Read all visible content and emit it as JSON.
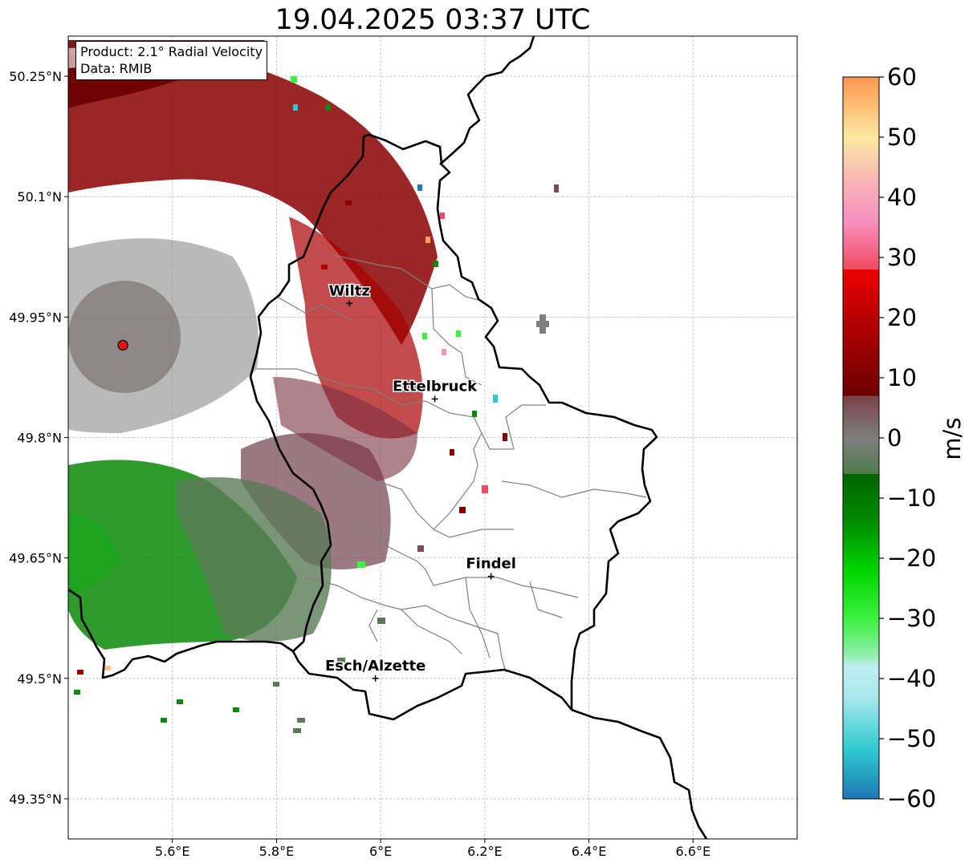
{
  "title": "19.04.2025 03:37 UTC",
  "info": {
    "product": "Product: 2.1° Radial Velocity",
    "source": "Data: RMIB"
  },
  "map": {
    "lon_range": [
      5.4,
      6.8
    ],
    "lat_range": [
      49.3,
      50.3
    ],
    "x_ticks": [
      {
        "value": 5.6,
        "label": "5.6°E"
      },
      {
        "value": 5.8,
        "label": "5.8°E"
      },
      {
        "value": 6.0,
        "label": "6°E"
      },
      {
        "value": 6.2,
        "label": "6.2°E"
      },
      {
        "value": 6.4,
        "label": "6.4°E"
      },
      {
        "value": 6.6,
        "label": "6.6°E"
      }
    ],
    "y_ticks": [
      {
        "value": 49.35,
        "label": "49.35°N"
      },
      {
        "value": 49.5,
        "label": "49.5°N"
      },
      {
        "value": 49.65,
        "label": "49.65°N"
      },
      {
        "value": 49.8,
        "label": "49.8°N"
      },
      {
        "value": 49.95,
        "label": "49.95°N"
      },
      {
        "value": 50.1,
        "label": "50.1°N"
      },
      {
        "value": 50.25,
        "label": "50.25°N"
      }
    ],
    "grid": true,
    "radar_site": {
      "lon": 5.505,
      "lat": 49.915,
      "color": "#ee1111"
    },
    "cities": [
      {
        "name": "Wiltz",
        "lon": 5.94,
        "lat": 49.967
      },
      {
        "name": "Ettelbruck",
        "lon": 6.104,
        "lat": 49.848
      },
      {
        "name": "Findel",
        "lon": 6.212,
        "lat": 49.627
      },
      {
        "name": "Esch/Alzette",
        "lon": 5.99,
        "lat": 49.5
      }
    ]
  },
  "colorbar": {
    "label": "m/s",
    "min": -60,
    "max": 60,
    "ticks": [
      {
        "value": 60,
        "label": "60"
      },
      {
        "value": 50,
        "label": "50"
      },
      {
        "value": 40,
        "label": "40"
      },
      {
        "value": 30,
        "label": "30"
      },
      {
        "value": 20,
        "label": "20"
      },
      {
        "value": 10,
        "label": "10"
      },
      {
        "value": 0,
        "label": "0"
      },
      {
        "value": -10,
        "label": "−10"
      },
      {
        "value": -20,
        "label": "−20"
      },
      {
        "value": -30,
        "label": "−30"
      },
      {
        "value": -40,
        "label": "−40"
      },
      {
        "value": -50,
        "label": "−50"
      },
      {
        "value": -60,
        "label": "−60"
      }
    ],
    "color_stops": [
      {
        "value": -60,
        "color": "#1f77b4"
      },
      {
        "value": -52,
        "color": "#2ec8d0"
      },
      {
        "value": -43,
        "color": "#a9e8ee"
      },
      {
        "value": -38,
        "color": "#c0eef0"
      },
      {
        "value": -36,
        "color": "#8fefaa"
      },
      {
        "value": -30,
        "color": "#3ef040"
      },
      {
        "value": -22,
        "color": "#00d400"
      },
      {
        "value": -14,
        "color": "#008c00"
      },
      {
        "value": -6,
        "color": "#006400"
      },
      {
        "value": -6,
        "color": "#4f7a4a"
      },
      {
        "value": 0,
        "color": "#7f7f7f"
      },
      {
        "value": 7,
        "color": "#7a4048"
      },
      {
        "value": 7,
        "color": "#6b0000"
      },
      {
        "value": 20,
        "color": "#b80000"
      },
      {
        "value": 28,
        "color": "#ee0000"
      },
      {
        "value": 28,
        "color": "#f04a60"
      },
      {
        "value": 36,
        "color": "#f890c0"
      },
      {
        "value": 42,
        "color": "#f9b0b8"
      },
      {
        "value": 50,
        "color": "#fce8a0"
      },
      {
        "value": 60,
        "color": "#ff9650"
      }
    ]
  }
}
